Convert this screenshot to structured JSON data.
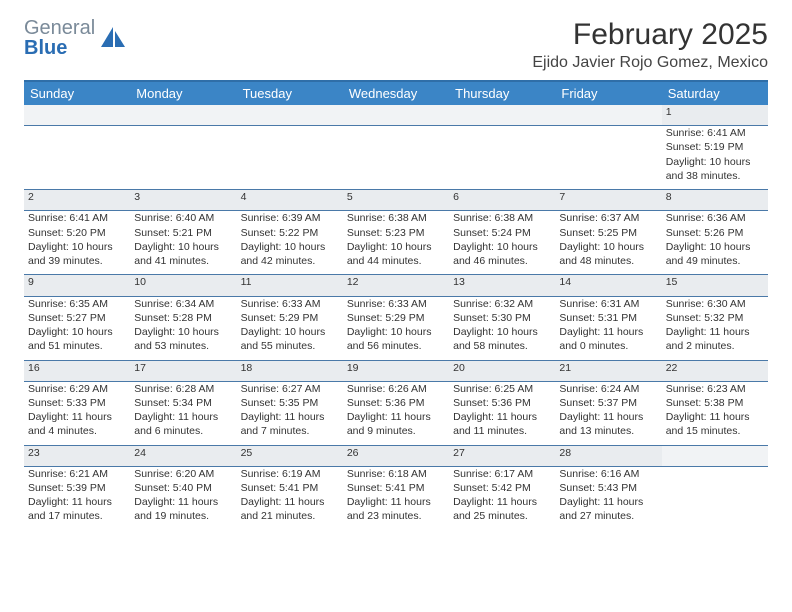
{
  "logo": {
    "text_gray": "General",
    "text_blue": "Blue"
  },
  "title": "February 2025",
  "location": "Ejido Javier Rojo Gomez, Mexico",
  "colors": {
    "header_bg": "#3b85c6",
    "header_border": "#2f6ea8",
    "row_divider": "#4a79a8",
    "daynum_bg": "#e9ecef",
    "logo_gray": "#7a8a99",
    "logo_blue": "#2a6db3"
  },
  "weekdays": [
    "Sunday",
    "Monday",
    "Tuesday",
    "Wednesday",
    "Thursday",
    "Friday",
    "Saturday"
  ],
  "weeks": [
    [
      null,
      null,
      null,
      null,
      null,
      null,
      {
        "n": "1",
        "sunrise": "6:41 AM",
        "sunset": "5:19 PM",
        "day_h": "10",
        "day_m": "38"
      }
    ],
    [
      {
        "n": "2",
        "sunrise": "6:41 AM",
        "sunset": "5:20 PM",
        "day_h": "10",
        "day_m": "39"
      },
      {
        "n": "3",
        "sunrise": "6:40 AM",
        "sunset": "5:21 PM",
        "day_h": "10",
        "day_m": "41"
      },
      {
        "n": "4",
        "sunrise": "6:39 AM",
        "sunset": "5:22 PM",
        "day_h": "10",
        "day_m": "42"
      },
      {
        "n": "5",
        "sunrise": "6:38 AM",
        "sunset": "5:23 PM",
        "day_h": "10",
        "day_m": "44"
      },
      {
        "n": "6",
        "sunrise": "6:38 AM",
        "sunset": "5:24 PM",
        "day_h": "10",
        "day_m": "46"
      },
      {
        "n": "7",
        "sunrise": "6:37 AM",
        "sunset": "5:25 PM",
        "day_h": "10",
        "day_m": "48"
      },
      {
        "n": "8",
        "sunrise": "6:36 AM",
        "sunset": "5:26 PM",
        "day_h": "10",
        "day_m": "49"
      }
    ],
    [
      {
        "n": "9",
        "sunrise": "6:35 AM",
        "sunset": "5:27 PM",
        "day_h": "10",
        "day_m": "51"
      },
      {
        "n": "10",
        "sunrise": "6:34 AM",
        "sunset": "5:28 PM",
        "day_h": "10",
        "day_m": "53"
      },
      {
        "n": "11",
        "sunrise": "6:33 AM",
        "sunset": "5:29 PM",
        "day_h": "10",
        "day_m": "55"
      },
      {
        "n": "12",
        "sunrise": "6:33 AM",
        "sunset": "5:29 PM",
        "day_h": "10",
        "day_m": "56"
      },
      {
        "n": "13",
        "sunrise": "6:32 AM",
        "sunset": "5:30 PM",
        "day_h": "10",
        "day_m": "58"
      },
      {
        "n": "14",
        "sunrise": "6:31 AM",
        "sunset": "5:31 PM",
        "day_h": "11",
        "day_m": "0"
      },
      {
        "n": "15",
        "sunrise": "6:30 AM",
        "sunset": "5:32 PM",
        "day_h": "11",
        "day_m": "2"
      }
    ],
    [
      {
        "n": "16",
        "sunrise": "6:29 AM",
        "sunset": "5:33 PM",
        "day_h": "11",
        "day_m": "4"
      },
      {
        "n": "17",
        "sunrise": "6:28 AM",
        "sunset": "5:34 PM",
        "day_h": "11",
        "day_m": "6"
      },
      {
        "n": "18",
        "sunrise": "6:27 AM",
        "sunset": "5:35 PM",
        "day_h": "11",
        "day_m": "7"
      },
      {
        "n": "19",
        "sunrise": "6:26 AM",
        "sunset": "5:36 PM",
        "day_h": "11",
        "day_m": "9"
      },
      {
        "n": "20",
        "sunrise": "6:25 AM",
        "sunset": "5:36 PM",
        "day_h": "11",
        "day_m": "11"
      },
      {
        "n": "21",
        "sunrise": "6:24 AM",
        "sunset": "5:37 PM",
        "day_h": "11",
        "day_m": "13"
      },
      {
        "n": "22",
        "sunrise": "6:23 AM",
        "sunset": "5:38 PM",
        "day_h": "11",
        "day_m": "15"
      }
    ],
    [
      {
        "n": "23",
        "sunrise": "6:21 AM",
        "sunset": "5:39 PM",
        "day_h": "11",
        "day_m": "17"
      },
      {
        "n": "24",
        "sunrise": "6:20 AM",
        "sunset": "5:40 PM",
        "day_h": "11",
        "day_m": "19"
      },
      {
        "n": "25",
        "sunrise": "6:19 AM",
        "sunset": "5:41 PM",
        "day_h": "11",
        "day_m": "21"
      },
      {
        "n": "26",
        "sunrise": "6:18 AM",
        "sunset": "5:41 PM",
        "day_h": "11",
        "day_m": "23"
      },
      {
        "n": "27",
        "sunrise": "6:17 AM",
        "sunset": "5:42 PM",
        "day_h": "11",
        "day_m": "25"
      },
      {
        "n": "28",
        "sunrise": "6:16 AM",
        "sunset": "5:43 PM",
        "day_h": "11",
        "day_m": "27"
      },
      null
    ]
  ],
  "labels": {
    "sunrise": "Sunrise:",
    "sunset": "Sunset:",
    "daylight_prefix": "Daylight:",
    "hours_word": "hours",
    "and_word": "and",
    "minutes_word": "minutes."
  }
}
